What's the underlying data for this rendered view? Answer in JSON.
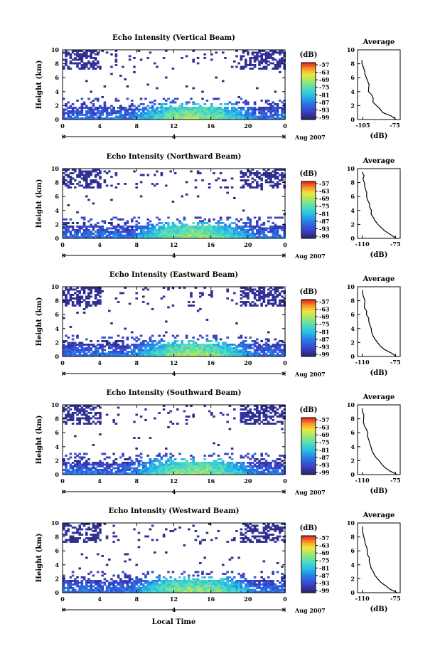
{
  "chart_data": [
    {
      "type": "heatmap",
      "title": "Echo Intensity (Vertical Beam)",
      "ylabel": "Height (km)",
      "x_ticks": [
        "0",
        "4",
        "8",
        "12",
        "16",
        "20",
        "0"
      ],
      "y_ticks": [
        "0",
        "2",
        "4",
        "6",
        "8",
        "10"
      ],
      "xlim": [
        0,
        24
      ],
      "ylim": [
        0,
        10
      ],
      "date_label": "4",
      "date_suffix": "Aug 2007",
      "colorbar_label": "(dB)",
      "colorbar_ticks": [
        "-57",
        "-63",
        "-69",
        "-75",
        "-81",
        "-87",
        "-93",
        "-99"
      ],
      "profile": {
        "title": "Average",
        "xlabel": "(dB)",
        "x_ticks": [
          "-105",
          "-75"
        ],
        "xlim": [
          -110,
          -70
        ],
        "heights": [
          0,
          0.5,
          1,
          1.5,
          2,
          2.5,
          3,
          3.5,
          4,
          4.5,
          5,
          5.5,
          6,
          6.5,
          7,
          7.5,
          8,
          8.5
        ],
        "values": [
          -73,
          -79,
          -86,
          -89,
          -92,
          -95,
          -96,
          -97,
          -99,
          -100,
          -100,
          -101,
          -102,
          -103,
          -104,
          -105,
          -105,
          -106
        ]
      }
    },
    {
      "type": "heatmap",
      "title": "Echo Intensity (Northward Beam)",
      "ylabel": "Height (km)",
      "x_ticks": [
        "0",
        "4",
        "8",
        "12",
        "16",
        "20",
        "0"
      ],
      "y_ticks": [
        "0",
        "2",
        "4",
        "6",
        "8",
        "10"
      ],
      "xlim": [
        0,
        24
      ],
      "ylim": [
        0,
        10
      ],
      "date_label": "4",
      "date_suffix": "Aug 2007",
      "colorbar_label": "(dB)",
      "colorbar_ticks": [
        "-57",
        "-63",
        "-69",
        "-75",
        "-81",
        "-87",
        "-93",
        "-99"
      ],
      "profile": {
        "title": "Average",
        "xlabel": "(dB)",
        "x_ticks": [
          "-110",
          "-75"
        ],
        "xlim": [
          -115,
          -70
        ],
        "heights": [
          0,
          0.5,
          1,
          1.5,
          2,
          2.5,
          3,
          3.5,
          4,
          4.5,
          5,
          5.5,
          6,
          6.5,
          7,
          7.5,
          8,
          8.5,
          9,
          9.5
        ],
        "values": [
          -74,
          -80,
          -86,
          -90,
          -94,
          -97,
          -98,
          -100,
          -101,
          -102,
          -103,
          -104,
          -105,
          -106,
          -107,
          -108,
          -108,
          -109,
          -109,
          -110
        ]
      }
    },
    {
      "type": "heatmap",
      "title": "Echo Intensity (Eastward Beam)",
      "ylabel": "Height (km)",
      "x_ticks": [
        "0",
        "4",
        "8",
        "12",
        "16",
        "20",
        "0"
      ],
      "y_ticks": [
        "0",
        "2",
        "4",
        "6",
        "8",
        "10"
      ],
      "xlim": [
        0,
        24
      ],
      "ylim": [
        0,
        10
      ],
      "date_label": "4",
      "date_suffix": "Aug 2007",
      "colorbar_label": "(dB)",
      "colorbar_ticks": [
        "-57",
        "-63",
        "-69",
        "-75",
        "-81",
        "-87",
        "-93",
        "-99"
      ],
      "profile": {
        "title": "Average",
        "xlabel": "(dB)",
        "x_ticks": [
          "-110",
          "-75"
        ],
        "xlim": [
          -115,
          -70
        ],
        "heights": [
          0,
          0.5,
          1,
          1.5,
          2,
          2.5,
          3,
          3.5,
          4,
          4.5,
          5,
          5.5,
          6,
          6.5,
          7,
          7.5,
          8,
          8.5,
          9,
          9.5
        ],
        "values": [
          -73,
          -80,
          -87,
          -91,
          -94,
          -97,
          -98,
          -100,
          -101,
          -102,
          -103,
          -104,
          -105,
          -106,
          -107,
          -108,
          -108,
          -109,
          -109,
          -110
        ]
      }
    },
    {
      "type": "heatmap",
      "title": "Echo Intensity (Southward Beam)",
      "ylabel": "Height (km)",
      "x_ticks": [
        "0",
        "4",
        "8",
        "12",
        "16",
        "20",
        "0"
      ],
      "y_ticks": [
        "0",
        "2",
        "4",
        "6",
        "8",
        "10"
      ],
      "xlim": [
        0,
        24
      ],
      "ylim": [
        0,
        10
      ],
      "date_label": "4",
      "date_suffix": "Aug 2007",
      "colorbar_label": "(dB)",
      "colorbar_ticks": [
        "-57",
        "-63",
        "-69",
        "-75",
        "-81",
        "-87",
        "-93",
        "-99"
      ],
      "profile": {
        "title": "Average",
        "xlabel": "(dB)",
        "x_ticks": [
          "-110",
          "-75"
        ],
        "xlim": [
          -115,
          -70
        ],
        "heights": [
          0,
          0.5,
          1,
          1.5,
          2,
          2.5,
          3,
          3.5,
          4,
          4.5,
          5,
          5.5,
          6,
          6.5,
          7,
          7.5,
          8,
          8.5,
          9,
          9.5
        ],
        "values": [
          -73,
          -80,
          -86,
          -90,
          -93,
          -96,
          -98,
          -100,
          -101,
          -102,
          -103,
          -104,
          -105,
          -106,
          -107,
          -108,
          -108,
          -109,
          -109,
          -110
        ]
      }
    },
    {
      "type": "heatmap",
      "title": "Echo Intensity (Westward Beam)",
      "ylabel": "Height (km)",
      "x_ticks": [
        "0",
        "4",
        "8",
        "12",
        "16",
        "20",
        "0"
      ],
      "y_ticks": [
        "0",
        "2",
        "4",
        "6",
        "8",
        "10"
      ],
      "xlim": [
        0,
        24
      ],
      "ylim": [
        0,
        10
      ],
      "date_label": "4",
      "date_suffix": "Aug 2007",
      "xlabel": "Local Time",
      "colorbar_label": "(dB)",
      "colorbar_ticks": [
        "-57",
        "-63",
        "-69",
        "-75",
        "-81",
        "-87",
        "-93",
        "-99"
      ],
      "profile": {
        "title": "Average",
        "xlabel": "(dB)",
        "x_ticks": [
          "-110",
          "-75"
        ],
        "xlim": [
          -115,
          -70
        ],
        "heights": [
          0,
          0.5,
          1,
          1.5,
          2,
          2.5,
          3,
          3.5,
          4,
          4.5,
          5,
          5.5,
          6,
          6.5,
          7,
          7.5,
          8,
          8.5,
          9,
          9.5
        ],
        "values": [
          -74,
          -80,
          -86,
          -90,
          -94,
          -97,
          -98,
          -100,
          -101,
          -102,
          -103,
          -104,
          -105,
          -106,
          -107,
          -108,
          -108,
          -109,
          -109,
          -110
        ]
      }
    }
  ]
}
